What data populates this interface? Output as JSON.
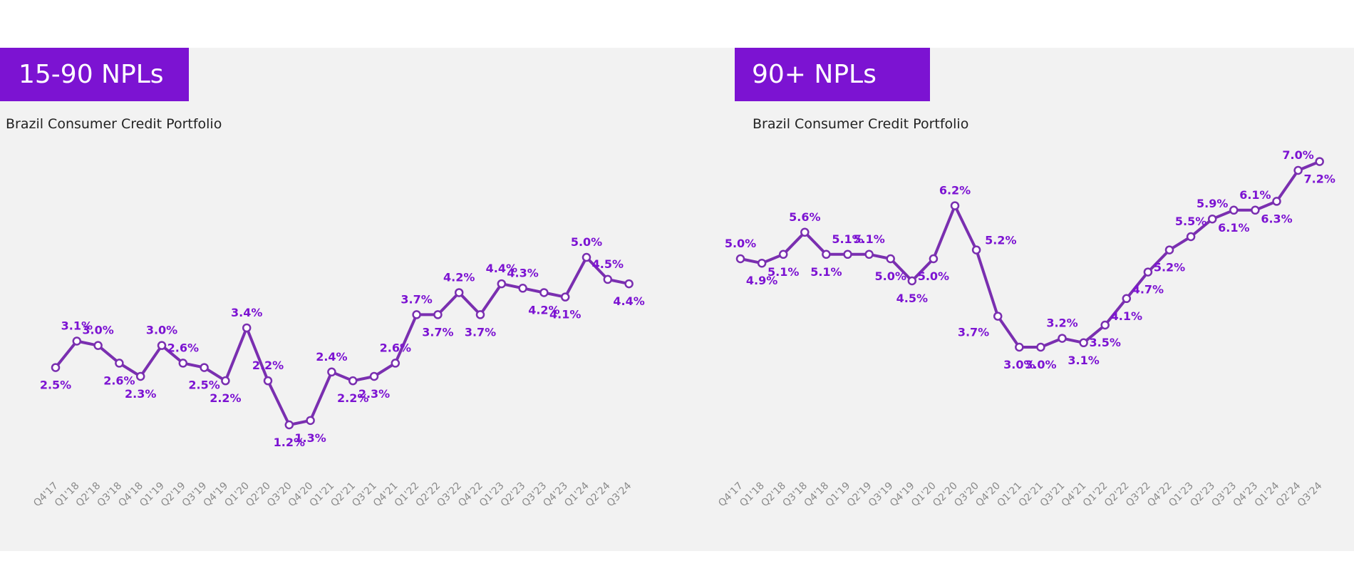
{
  "colors": {
    "accent": "#7c13d2",
    "line": "#7a2fb0",
    "panel": "#f2f2f2"
  },
  "chart_data": [
    {
      "type": "line",
      "title": "15-90 NPLs",
      "subtitle": "Brazil Consumer Credit Portfolio",
      "categories": [
        "Q4'17",
        "Q1'18",
        "Q2'18",
        "Q3'18",
        "Q4'18",
        "Q1'19",
        "Q2'19",
        "Q3'19",
        "Q4'19",
        "Q1'20",
        "Q2'20",
        "Q3'20",
        "Q4'20",
        "Q1'21",
        "Q2'21",
        "Q3'21",
        "Q4'21",
        "Q1'22",
        "Q2'22",
        "Q3'22",
        "Q4'22",
        "Q1'23",
        "Q2'23",
        "Q3'23",
        "Q4'23",
        "Q1'24",
        "Q2'24",
        "Q3'24"
      ],
      "values": [
        2.5,
        3.1,
        3.0,
        2.6,
        2.3,
        3.0,
        2.6,
        2.5,
        2.2,
        3.4,
        2.2,
        1.2,
        1.3,
        2.4,
        2.2,
        2.3,
        2.6,
        3.7,
        3.7,
        4.2,
        3.7,
        4.4,
        4.3,
        4.2,
        4.1,
        5.0,
        4.5,
        4.4
      ],
      "labels": [
        "2.5%",
        "3.1%",
        "3.0%",
        "2.6%",
        "2.3%",
        "3.0%",
        "2.6%",
        "2.5%",
        "2.2%",
        "3.4%",
        "2.2%",
        "1.2%",
        "1.3%",
        "2.4%",
        "2.2%",
        "2.3%",
        "2.6%",
        "3.7%",
        "3.7%",
        "4.2%",
        "3.7%",
        "4.4%",
        "4.3%",
        "4.2%",
        "4.1%",
        "5.0%",
        "4.5%",
        "4.4%"
      ],
      "label_positions": [
        "below",
        "above",
        "above",
        "below",
        "below",
        "above",
        "above",
        "below",
        "below",
        "above",
        "above",
        "below",
        "below",
        "above",
        "below",
        "below",
        "above",
        "above",
        "below",
        "above",
        "below",
        "above",
        "above",
        "below",
        "below",
        "above",
        "above",
        "below"
      ],
      "unit": "%",
      "grid": false,
      "legend": "none"
    },
    {
      "type": "line",
      "title": "90+ NPLs",
      "subtitle": "Brazil Consumer Credit Portfolio",
      "categories": [
        "Q4'17",
        "Q1'18",
        "Q2'18",
        "Q3'18",
        "Q4'18",
        "Q1'19",
        "Q2'19",
        "Q3'19",
        "Q4'19",
        "Q1'20",
        "Q2'20",
        "Q3'20",
        "Q4'20",
        "Q1'21",
        "Q2'21",
        "Q3'21",
        "Q4'21",
        "Q1'22",
        "Q2'22",
        "Q3'22",
        "Q4'22",
        "Q1'23",
        "Q2'23",
        "Q3'23",
        "Q4'23",
        "Q1'24",
        "Q2'24",
        "Q3'24"
      ],
      "values": [
        5.0,
        4.9,
        5.1,
        5.6,
        5.1,
        5.1,
        5.1,
        5.0,
        4.5,
        5.0,
        6.2,
        5.2,
        3.7,
        3.0,
        3.0,
        3.2,
        3.1,
        3.5,
        4.1,
        4.7,
        5.2,
        5.5,
        5.9,
        6.1,
        6.1,
        6.3,
        7.0,
        7.2
      ],
      "labels": [
        "5.0%",
        "4.9%",
        "5.1%",
        "5.6%",
        "5.1%",
        "5.1%",
        "5.1%",
        "5.0%",
        "4.5%",
        "5.0%",
        "6.2%",
        "5.2%",
        "3.7%",
        "3.0%",
        "3.0%",
        "3.2%",
        "3.1%",
        "3.5%",
        "4.1%",
        "4.7%",
        "5.2%",
        "5.5%",
        "5.9%",
        "6.1%",
        "6.1%",
        "6.3%",
        "7.0%",
        "7.2%"
      ],
      "label_positions": [
        "above",
        "below",
        "below",
        "above",
        "below",
        "above",
        "above",
        "below",
        "below",
        "below",
        "above",
        "right",
        "left",
        "below",
        "below",
        "above",
        "below",
        "below",
        "below",
        "below",
        "below",
        "above",
        "above",
        "below",
        "above",
        "below",
        "above",
        "below"
      ],
      "unit": "%",
      "grid": false,
      "legend": "none"
    }
  ]
}
